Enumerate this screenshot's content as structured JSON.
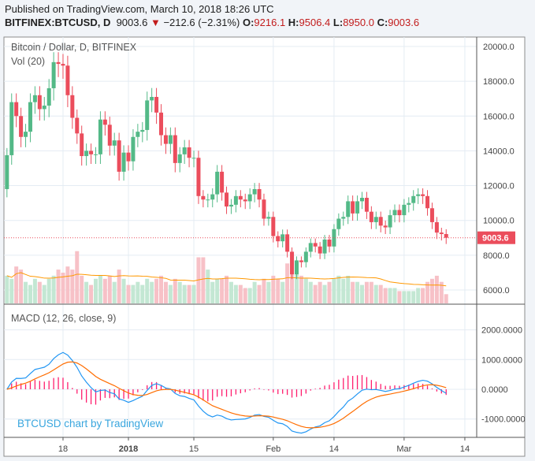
{
  "header": {
    "published": "Published on TradingView.com, March 10, 2018 18:26 UTC",
    "symbol": "BITFINEX:BTCUSD, D",
    "last": "9003.6",
    "change": "−212.6 (−2.31%)",
    "o_label": "O:",
    "o": "9216.1",
    "h_label": "H:",
    "h": "9506.4",
    "l_label": "L:",
    "l": "8950.0",
    "c_label": "C:",
    "c": "9003.6"
  },
  "legend": {
    "title": "Bitcoin / Dollar, D, BITFINEX",
    "volume": "Vol (20)",
    "macd": "MACD (12, 26, close, 9)"
  },
  "watermark": "BTCUSD chart by TradingView",
  "colors": {
    "up": "#53b987",
    "down": "#eb4d5c",
    "vol_up": "#c3e7d3",
    "vol_down": "#f7c1c7",
    "macd": "#2196f3",
    "signal": "#ff6d00",
    "hist": "#ff1e6e",
    "vol_ma": "#ff9800",
    "price_tag": "#eb4d5c"
  },
  "chart_data": {
    "type": "candlestick",
    "start_date": "2017-12-06",
    "price_ticks": [
      "20000.0",
      "18000.0",
      "16000.0",
      "14000.0",
      "12000.0",
      "10000.0",
      "8000.0",
      "6000.0"
    ],
    "macd_ticks": [
      "2000.0000",
      "1000.0000",
      "0.0000",
      "-1000.0000"
    ],
    "x_ticks": [
      {
        "label": "18",
        "day": -14
      },
      {
        "label": "2018",
        "day": 0,
        "bold": true
      },
      {
        "label": "15",
        "day": 14
      },
      {
        "label": "Feb",
        "day": 31
      },
      {
        "label": "14",
        "day": 44
      },
      {
        "label": "Mar",
        "day": 59
      },
      {
        "label": "14",
        "day": 72
      }
    ],
    "current_price": "9003.6",
    "first_open": 11800,
    "closes": [
      13750,
      16800,
      16000,
      14800,
      15100,
      16800,
      17200,
      16400,
      16600,
      17600,
      19100,
      19000,
      18900,
      17200,
      15900,
      15000,
      13700,
      14000,
      13800,
      13800,
      15800,
      15500,
      14300,
      14600,
      12800,
      13900,
      13400,
      14800,
      15100,
      15200,
      16900,
      17100,
      16200,
      14900,
      14400,
      14900,
      13300,
      13800,
      14200,
      13600,
      13600,
      11400,
      11200,
      11200,
      11500,
      12800,
      11600,
      10800,
      10900,
      11400,
      11200,
      11100,
      11500,
      11800,
      11200,
      10100,
      10200,
      9100,
      8800,
      9200,
      8200,
      6900,
      7700,
      7600,
      8200,
      8700,
      8500,
      8100,
      8900,
      8500,
      9500,
      10100,
      10200,
      11100,
      10400,
      11100,
      11300,
      10500,
      9900,
      10200,
      9700,
      9600,
      10300,
      10600,
      10300,
      10900,
      11000,
      11400,
      11500,
      11400,
      10700,
      9900,
      9300,
      9216,
      9004
    ],
    "volumes": [
      45,
      40,
      60,
      55,
      35,
      30,
      40,
      35,
      30,
      40,
      45,
      55,
      50,
      60,
      55,
      85,
      45,
      35,
      30,
      40,
      45,
      40,
      45,
      35,
      55,
      40,
      30,
      30,
      35,
      30,
      40,
      35,
      40,
      45,
      35,
      30,
      40,
      35,
      30,
      30,
      30,
      75,
      75,
      55,
      35,
      40,
      40,
      45,
      35,
      30,
      30,
      25,
      25,
      35,
      30,
      40,
      35,
      45,
      40,
      35,
      65,
      75,
      70,
      45,
      40,
      35,
      30,
      35,
      30,
      35,
      40,
      45,
      40,
      45,
      35,
      35,
      30,
      35,
      35,
      30,
      30,
      25,
      25,
      25,
      20,
      20,
      20,
      20,
      25,
      25,
      35,
      40,
      45,
      35,
      15
    ]
  }
}
